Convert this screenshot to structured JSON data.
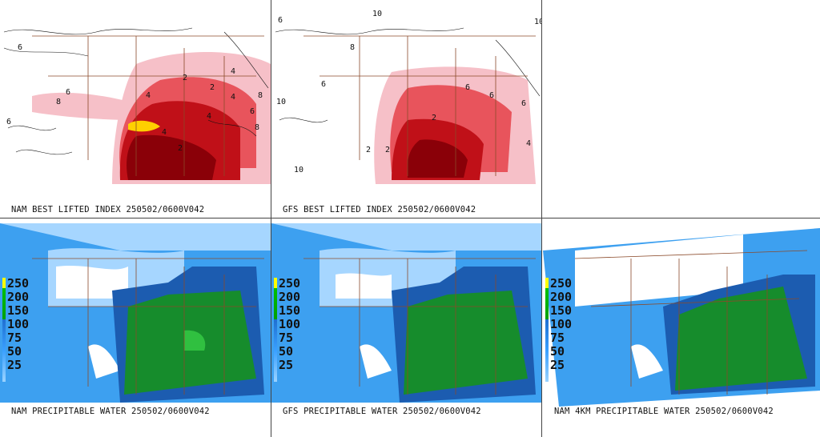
{
  "panels": {
    "nam_li": {
      "caption": "NAM BEST LIFTED INDEX 250502/0600V042",
      "contour_labels": [
        "6",
        "8",
        "4",
        "2",
        "2",
        "4",
        "4",
        "6",
        "8",
        "6",
        "6",
        "8",
        "4",
        "2",
        "4"
      ]
    },
    "gfs_li": {
      "caption": "GFS BEST LIFTED INDEX 250502/0600V042",
      "contour_labels": [
        "6",
        "10",
        "8",
        "6",
        "10",
        "10",
        "2",
        "6",
        "10",
        "6",
        "6",
        "2",
        "2",
        "4"
      ]
    },
    "nam_pw": {
      "caption": "NAM PRECIPITABLE WATER 250502/0600V042"
    },
    "gfs_pw": {
      "caption": "GFS PRECIPITABLE WATER 250502/0600V042"
    },
    "nam4k_pw": {
      "caption": "NAM 4KM PRECIPITABLE WATER 250502/0600V042"
    }
  },
  "legend": {
    "labels": [
      "250",
      "200",
      "150",
      "100",
      "75",
      "50",
      "25"
    ]
  },
  "colors": {
    "li_light": "#f6c0c8",
    "li_mid": "#e8545c",
    "li_dark": "#c01018",
    "li_darkest": "#8a0008",
    "li_yellow": "#ffd000",
    "pw_white": "#ffffff",
    "pw_light": "#a6d6ff",
    "pw_blue": "#3da0f0",
    "pw_dark": "#1c5cb0",
    "pw_green": "#168c2c",
    "pw_bright": "#30c040",
    "borders": "#8b4a2a"
  }
}
